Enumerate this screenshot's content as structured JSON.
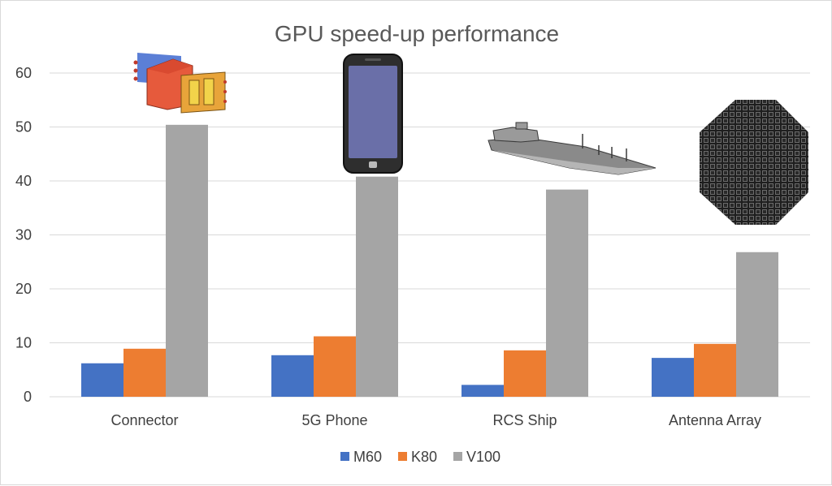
{
  "chart_data": {
    "type": "bar",
    "title": "GPU speed-up performance",
    "categories": [
      "Connector",
      "5G Phone",
      "RCS Ship",
      "Antenna Array"
    ],
    "series": [
      {
        "name": "M60",
        "values": [
          6.2,
          7.7,
          2.2,
          7.2
        ]
      },
      {
        "name": "K80",
        "values": [
          8.9,
          11.2,
          8.6,
          9.8
        ]
      },
      {
        "name": "V100",
        "values": [
          50.4,
          40.8,
          38.4,
          26.8
        ]
      }
    ],
    "ylim": [
      0,
      60
    ],
    "yticks": [
      0,
      10,
      20,
      30,
      40,
      50,
      60
    ],
    "grid": true,
    "legend": "bottom",
    "colors": {
      "M60": "#4472c4",
      "K80": "#ed7d31",
      "V100": "#a5a5a5",
      "grid": "#d9d9d9",
      "text": "#404040"
    },
    "illustrations": [
      "connector-model",
      "phone-model",
      "ship-model",
      "antenna-array-model"
    ]
  }
}
